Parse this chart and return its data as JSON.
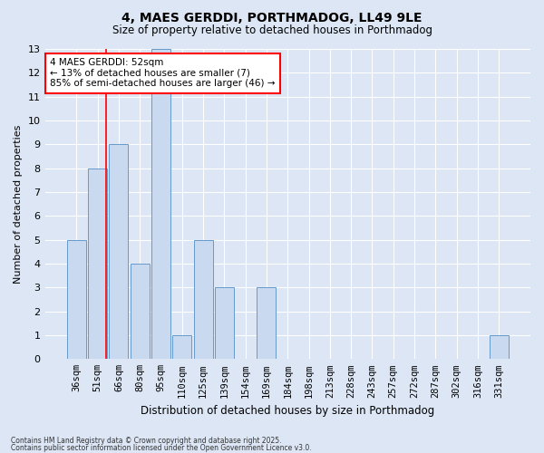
{
  "title1": "4, MAES GERDDI, PORTHMADOG, LL49 9LE",
  "title2": "Size of property relative to detached houses in Porthmadog",
  "xlabel": "Distribution of detached houses by size in Porthmadog",
  "ylabel": "Number of detached properties",
  "categories": [
    "36sqm",
    "51sqm",
    "66sqm",
    "80sqm",
    "95sqm",
    "110sqm",
    "125sqm",
    "139sqm",
    "154sqm",
    "169sqm",
    "184sqm",
    "198sqm",
    "213sqm",
    "228sqm",
    "243sqm",
    "257sqm",
    "272sqm",
    "287sqm",
    "302sqm",
    "316sqm",
    "331sqm"
  ],
  "values": [
    5,
    8,
    9,
    4,
    13,
    1,
    5,
    3,
    0,
    3,
    0,
    0,
    0,
    0,
    0,
    0,
    0,
    0,
    0,
    0,
    1
  ],
  "bar_color": "#c9d9ef",
  "bar_edge_color": "#6699cc",
  "subject_label": "4 MAES GERDDI: 52sqm",
  "annotation_line1": "← 13% of detached houses are smaller (7)",
  "annotation_line2": "85% of semi-detached houses are larger (46) →",
  "vline_color": "red",
  "vline_x_index": 1.42,
  "ylim_max": 13,
  "yticks": [
    0,
    1,
    2,
    3,
    4,
    5,
    6,
    7,
    8,
    9,
    10,
    11,
    12,
    13
  ],
  "footer1": "Contains HM Land Registry data © Crown copyright and database right 2025.",
  "footer2": "Contains public sector information licensed under the Open Government Licence v3.0.",
  "bg_color": "#dce6f5",
  "plot_bg_color": "#dce6f5",
  "grid_color": "#ffffff"
}
